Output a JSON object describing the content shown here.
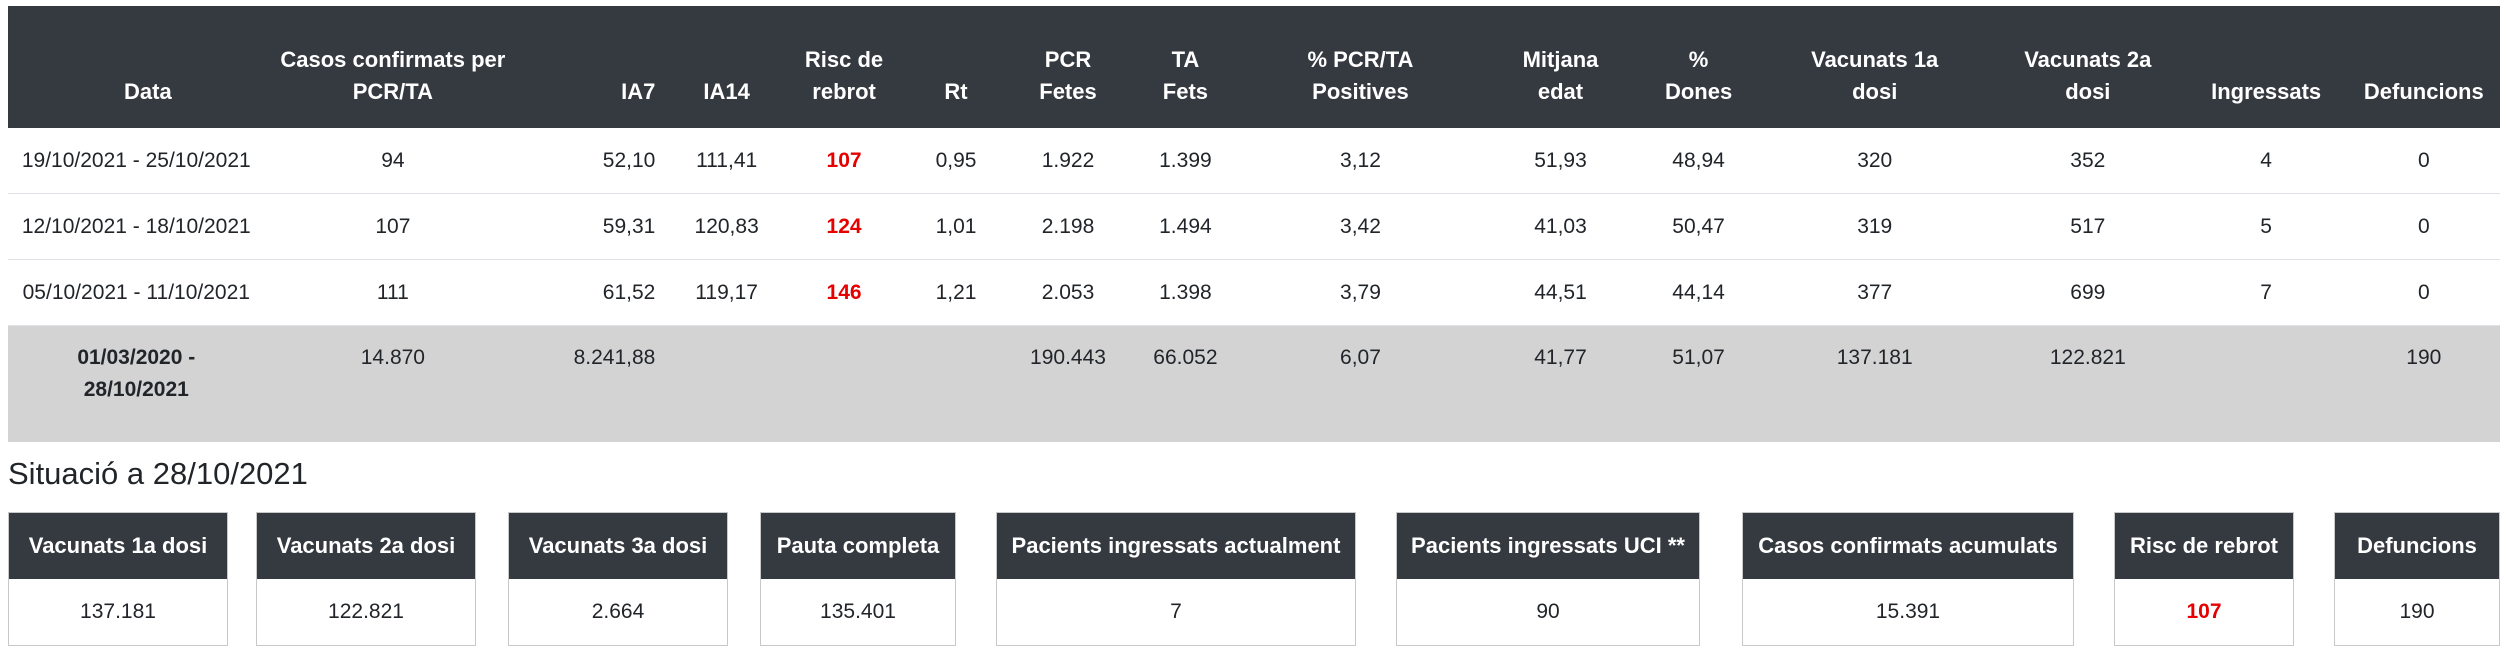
{
  "table": {
    "headers": [
      "Data",
      "Casos confirmats per\nPCR/TA",
      "IA7",
      "IA14",
      "Risc de\nrebrot",
      "Rt",
      "PCR\nFetes",
      "TA\nFets",
      "% PCR/TA\nPositives",
      "Mitjana\nedat",
      "%\nDones",
      "Vacunats 1a\ndosi",
      "Vacunats 2a\ndosi",
      "Ingressats",
      "Defuncions"
    ],
    "rows": [
      [
        "19/10/2021 - 25/10/2021",
        "94",
        "52,10",
        "111,41",
        "107",
        "0,95",
        "1.922",
        "1.399",
        "3,12",
        "51,93",
        "48,94",
        "320",
        "352",
        "4",
        "0"
      ],
      [
        "12/10/2021 - 18/10/2021",
        "107",
        "59,31",
        "120,83",
        "124",
        "1,01",
        "2.198",
        "1.494",
        "3,42",
        "41,03",
        "50,47",
        "319",
        "517",
        "5",
        "0"
      ],
      [
        "05/10/2021 - 11/10/2021",
        "111",
        "61,52",
        "119,17",
        "146",
        "1,21",
        "2.053",
        "1.398",
        "3,79",
        "44,51",
        "44,14",
        "377",
        "699",
        "7",
        "0"
      ]
    ],
    "total": [
      "01/03/2020 -\n28/10/2021",
      "14.870",
      "8.241,88",
      "",
      "",
      "",
      "190.443",
      "66.052",
      "6,07",
      "41,77",
      "51,07",
      "137.181",
      "122.821",
      "",
      "190"
    ]
  },
  "situacio": {
    "title": "Situació a 28/10/2021",
    "cards": [
      {
        "label": "Vacunats 1a dosi",
        "value": "137.181"
      },
      {
        "label": "Vacunats 2a dosi",
        "value": "122.821"
      },
      {
        "label": "Vacunats 3a dosi",
        "value": "2.664"
      },
      {
        "label": "Pauta completa",
        "value": "135.401"
      },
      {
        "label": "Pacients ingressats actualment",
        "value": "7"
      },
      {
        "label": "Pacients ingressats UCI **",
        "value": "90"
      },
      {
        "label": "Casos confirmats acumulats",
        "value": "15.391"
      },
      {
        "label": "Risc de rebrot",
        "value": "107"
      },
      {
        "label": "Defuncions",
        "value": "190"
      }
    ]
  },
  "colors": {
    "header_bg": "#343a40",
    "header_text": "#ffffff",
    "risk_red": "#e60000",
    "total_row_bg": "#d3d3d3"
  }
}
